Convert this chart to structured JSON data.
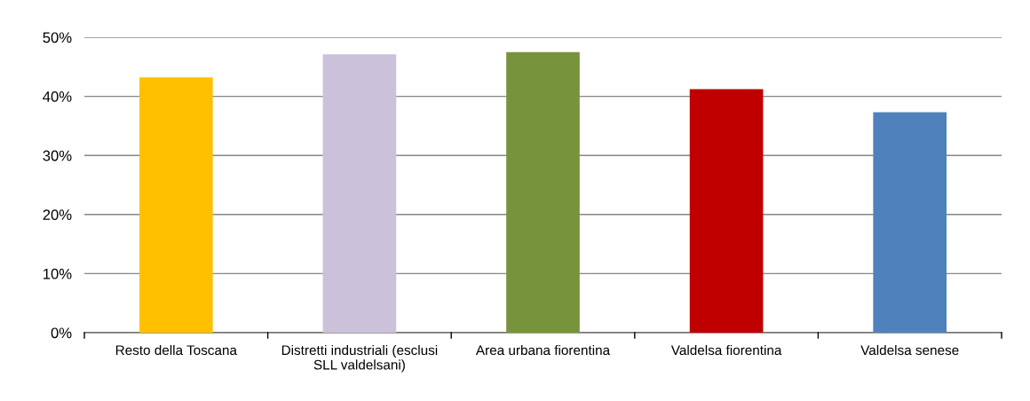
{
  "chart_data": {
    "type": "bar",
    "categories": [
      "Resto della Toscana",
      "Distretti industriali (esclusi\nSLL valdelsani)",
      "Area urbana fiorentina",
      "Valdelsa fiorentina",
      "Valdelsa senese"
    ],
    "values": [
      43.2,
      47.1,
      47.5,
      41.2,
      37.3
    ],
    "colors": [
      "#ffc000",
      "#ccc1da",
      "#77933c",
      "#c00000",
      "#4f81bd"
    ],
    "ylim": [
      0,
      50
    ],
    "yticks": [
      {
        "value": 0,
        "label": "0%"
      },
      {
        "value": 10,
        "label": "10%"
      },
      {
        "value": 20,
        "label": "20%"
      },
      {
        "value": 30,
        "label": "30%"
      },
      {
        "value": 40,
        "label": "40%"
      },
      {
        "value": 50,
        "label": "50%"
      }
    ],
    "grid": "y",
    "legend": false
  }
}
